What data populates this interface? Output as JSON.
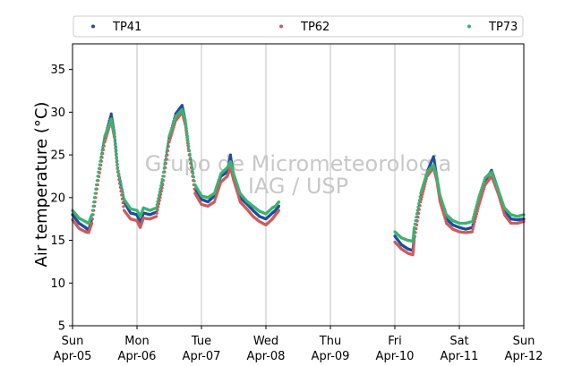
{
  "chart_data": {
    "type": "scatter",
    "ylabel": "Air temperature (°C)",
    "xlabel": "",
    "ylim": [
      5,
      38
    ],
    "xlim": [
      0,
      7
    ],
    "y_ticks": [
      5,
      10,
      15,
      20,
      25,
      30,
      35
    ],
    "x_ticks": [
      {
        "x": 0,
        "day": "Sun",
        "date": "Apr-05"
      },
      {
        "x": 1,
        "day": "Mon",
        "date": "Apr-06"
      },
      {
        "x": 2,
        "day": "Tue",
        "date": "Apr-07"
      },
      {
        "x": 3,
        "day": "Wed",
        "date": "Apr-08"
      },
      {
        "x": 4,
        "day": "Thu",
        "date": "Apr-09"
      },
      {
        "x": 5,
        "day": "Fri",
        "date": "Apr-10"
      },
      {
        "x": 6,
        "day": "Sat",
        "date": "Apr-11"
      },
      {
        "x": 7,
        "day": "Sun",
        "date": "Apr-12"
      }
    ],
    "grid": "vertical",
    "legend_position": "top",
    "watermark": [
      "Grupo de Micrometeorologia",
      "IAG / USP"
    ],
    "series": [
      {
        "name": "TP41",
        "color": "#1f4e9c",
        "segments": [
          [
            [
              0,
              18.0
            ],
            [
              0.1,
              17.0
            ],
            [
              0.2,
              16.5
            ],
            [
              0.25,
              16.2
            ],
            [
              0.3,
              17.5
            ],
            [
              0.4,
              22.5
            ],
            [
              0.5,
              27.0
            ],
            [
              0.6,
              29.8
            ],
            [
              0.65,
              27.5
            ],
            [
              0.7,
              23.5
            ],
            [
              0.8,
              19.5
            ],
            [
              0.9,
              18.2
            ],
            [
              1.0,
              18.0
            ],
            [
              1.05,
              17.0
            ],
            [
              1.1,
              18.2
            ],
            [
              1.2,
              18.0
            ],
            [
              1.3,
              18.3
            ],
            [
              1.4,
              22.0
            ],
            [
              1.5,
              27.0
            ],
            [
              1.6,
              29.8
            ],
            [
              1.7,
              30.8
            ],
            [
              1.75,
              29.0
            ],
            [
              1.8,
              26.0
            ],
            [
              1.9,
              21.0
            ],
            [
              2.0,
              19.8
            ],
            [
              2.1,
              19.5
            ],
            [
              2.2,
              20.2
            ],
            [
              2.3,
              22.5
            ],
            [
              2.4,
              23.0
            ],
            [
              2.45,
              25.0
            ],
            [
              2.5,
              22.5
            ],
            [
              2.6,
              20.0
            ],
            [
              2.7,
              19.3
            ],
            [
              2.8,
              18.5
            ],
            [
              2.9,
              17.8
            ],
            [
              3.0,
              17.5
            ],
            [
              3.1,
              18.2
            ],
            [
              3.15,
              18.5
            ],
            [
              3.2,
              19.0
            ]
          ],
          [
            [
              5.0,
              15.5
            ],
            [
              5.1,
              14.5
            ],
            [
              5.2,
              14.0
            ],
            [
              5.28,
              13.8
            ],
            [
              5.3,
              15.5
            ],
            [
              5.4,
              20.0
            ],
            [
              5.5,
              23.0
            ],
            [
              5.6,
              24.8
            ],
            [
              5.65,
              22.5
            ],
            [
              5.7,
              20.0
            ],
            [
              5.8,
              17.5
            ],
            [
              5.9,
              16.8
            ],
            [
              6.0,
              16.5
            ],
            [
              6.1,
              16.3
            ],
            [
              6.2,
              16.5
            ],
            [
              6.3,
              19.5
            ],
            [
              6.4,
              22.0
            ],
            [
              6.5,
              23.2
            ],
            [
              6.6,
              21.0
            ],
            [
              6.7,
              18.5
            ],
            [
              6.8,
              17.5
            ],
            [
              6.9,
              17.4
            ],
            [
              7.0,
              17.5
            ]
          ]
        ]
      },
      {
        "name": "TP62",
        "color": "#cd5c5c",
        "segments": [
          [
            [
              0,
              17.4
            ],
            [
              0.1,
              16.4
            ],
            [
              0.2,
              16.0
            ],
            [
              0.25,
              15.9
            ],
            [
              0.3,
              17.0
            ],
            [
              0.4,
              22.0
            ],
            [
              0.5,
              26.5
            ],
            [
              0.6,
              29.0
            ],
            [
              0.65,
              27.0
            ],
            [
              0.7,
              23.0
            ],
            [
              0.8,
              18.5
            ],
            [
              0.9,
              17.5
            ],
            [
              1.0,
              17.3
            ],
            [
              1.05,
              16.5
            ],
            [
              1.1,
              17.6
            ],
            [
              1.2,
              17.5
            ],
            [
              1.3,
              17.8
            ],
            [
              1.4,
              21.5
            ],
            [
              1.5,
              26.5
            ],
            [
              1.6,
              29.0
            ],
            [
              1.7,
              30.0
            ],
            [
              1.75,
              28.5
            ],
            [
              1.8,
              25.5
            ],
            [
              1.9,
              20.5
            ],
            [
              2.0,
              19.2
            ],
            [
              2.1,
              19.0
            ],
            [
              2.2,
              19.5
            ],
            [
              2.3,
              21.8
            ],
            [
              2.4,
              22.5
            ],
            [
              2.45,
              23.5
            ],
            [
              2.5,
              22.0
            ],
            [
              2.6,
              19.5
            ],
            [
              2.7,
              18.7
            ],
            [
              2.8,
              17.8
            ],
            [
              2.9,
              17.2
            ],
            [
              3.0,
              16.8
            ],
            [
              3.1,
              17.5
            ],
            [
              3.15,
              18.0
            ],
            [
              3.2,
              18.5
            ]
          ],
          [
            [
              5.0,
              14.8
            ],
            [
              5.1,
              14.0
            ],
            [
              5.2,
              13.5
            ],
            [
              5.28,
              13.3
            ],
            [
              5.3,
              15.0
            ],
            [
              5.4,
              19.5
            ],
            [
              5.5,
              22.5
            ],
            [
              5.6,
              23.5
            ],
            [
              5.65,
              22.0
            ],
            [
              5.7,
              19.5
            ],
            [
              5.8,
              17.0
            ],
            [
              5.9,
              16.3
            ],
            [
              6.0,
              16.0
            ],
            [
              6.1,
              15.9
            ],
            [
              6.2,
              16.0
            ],
            [
              6.3,
              19.0
            ],
            [
              6.4,
              21.5
            ],
            [
              6.5,
              22.5
            ],
            [
              6.6,
              20.5
            ],
            [
              6.7,
              18.0
            ],
            [
              6.8,
              17.0
            ],
            [
              6.9,
              17.0
            ],
            [
              7.0,
              17.2
            ]
          ]
        ]
      },
      {
        "name": "TP73",
        "color": "#3cb371",
        "segments": [
          [
            [
              0,
              18.5
            ],
            [
              0.1,
              17.6
            ],
            [
              0.2,
              17.2
            ],
            [
              0.25,
              17.0
            ],
            [
              0.3,
              18.0
            ],
            [
              0.4,
              23.0
            ],
            [
              0.5,
              27.2
            ],
            [
              0.6,
              29.2
            ],
            [
              0.65,
              27.3
            ],
            [
              0.7,
              23.5
            ],
            [
              0.8,
              19.8
            ],
            [
              0.9,
              18.7
            ],
            [
              1.0,
              18.5
            ],
            [
              1.05,
              17.8
            ],
            [
              1.1,
              18.8
            ],
            [
              1.2,
              18.5
            ],
            [
              1.3,
              18.8
            ],
            [
              1.4,
              22.5
            ],
            [
              1.5,
              27.2
            ],
            [
              1.6,
              29.5
            ],
            [
              1.7,
              30.3
            ],
            [
              1.75,
              29.0
            ],
            [
              1.8,
              26.0
            ],
            [
              1.9,
              21.5
            ],
            [
              2.0,
              20.2
            ],
            [
              2.1,
              20.0
            ],
            [
              2.2,
              20.5
            ],
            [
              2.3,
              22.8
            ],
            [
              2.4,
              23.5
            ],
            [
              2.45,
              24.2
            ],
            [
              2.5,
              22.8
            ],
            [
              2.6,
              20.5
            ],
            [
              2.7,
              19.6
            ],
            [
              2.8,
              19.0
            ],
            [
              2.9,
              18.4
            ],
            [
              3.0,
              18.1
            ],
            [
              3.1,
              18.8
            ],
            [
              3.15,
              19.0
            ],
            [
              3.2,
              19.5
            ]
          ],
          [
            [
              5.0,
              16.0
            ],
            [
              5.1,
              15.3
            ],
            [
              5.2,
              15.0
            ],
            [
              5.28,
              14.9
            ],
            [
              5.3,
              16.5
            ],
            [
              5.4,
              20.5
            ],
            [
              5.5,
              23.0
            ],
            [
              5.6,
              23.8
            ],
            [
              5.65,
              22.5
            ],
            [
              5.7,
              20.3
            ],
            [
              5.8,
              18.0
            ],
            [
              5.9,
              17.3
            ],
            [
              6.0,
              17.0
            ],
            [
              6.1,
              17.0
            ],
            [
              6.2,
              17.2
            ],
            [
              6.3,
              20.0
            ],
            [
              6.4,
              22.3
            ],
            [
              6.5,
              23.0
            ],
            [
              6.6,
              21.0
            ],
            [
              6.7,
              18.8
            ],
            [
              6.8,
              18.0
            ],
            [
              6.9,
              17.8
            ],
            [
              7.0,
              18.0
            ]
          ]
        ]
      }
    ]
  }
}
